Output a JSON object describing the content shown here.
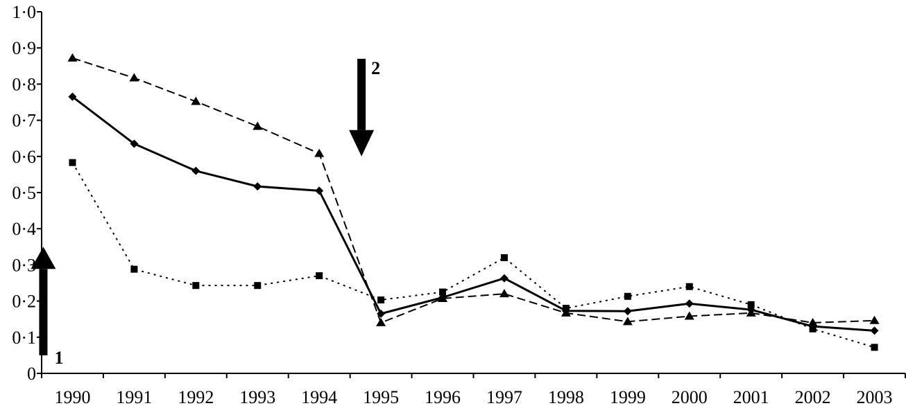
{
  "chart_data": {
    "type": "line",
    "title": "",
    "xlabel": "",
    "ylabel": "",
    "categories": [
      "1990",
      "1991",
      "1992",
      "1993",
      "1994",
      "1995",
      "1996",
      "1997",
      "1998",
      "1999",
      "2000",
      "2001",
      "2002",
      "2003"
    ],
    "ylim": [
      0,
      1.0
    ],
    "yticks": [
      0,
      0.1,
      0.2,
      0.3,
      0.4,
      0.5,
      0.6,
      0.7,
      0.8,
      0.9,
      1.0
    ],
    "ytick_labels": [
      "0",
      "0·1",
      "0·2",
      "0·3",
      "0·4",
      "0·5",
      "0·6",
      "0·7",
      "0·8",
      "0·9",
      "1·0"
    ],
    "grid": false,
    "series": [
      {
        "line": "solid",
        "marker": "diamond",
        "color": "#000000",
        "values": [
          0.765,
          0.635,
          0.56,
          0.517,
          0.505,
          0.165,
          0.21,
          0.263,
          0.173,
          0.172,
          0.193,
          0.176,
          0.13,
          0.118
        ]
      },
      {
        "line": "dotted",
        "marker": "square",
        "color": "#000000",
        "values": [
          0.583,
          0.288,
          0.243,
          0.243,
          0.27,
          0.203,
          0.225,
          0.32,
          0.18,
          0.213,
          0.24,
          0.19,
          0.123,
          0.072
        ]
      },
      {
        "line": "dashed",
        "marker": "triangle",
        "color": "#000000",
        "values": [
          0.872,
          0.817,
          0.752,
          0.683,
          0.608,
          0.14,
          0.207,
          0.22,
          0.167,
          0.143,
          0.158,
          0.167,
          0.14,
          0.146
        ]
      }
    ],
    "annotations": [
      {
        "label": "1",
        "direction": "up",
        "category": "1990",
        "from": 0.05,
        "to": 0.35
      },
      {
        "label": "2",
        "direction": "down",
        "category": "1995",
        "from": 0.87,
        "to": 0.6
      }
    ]
  }
}
